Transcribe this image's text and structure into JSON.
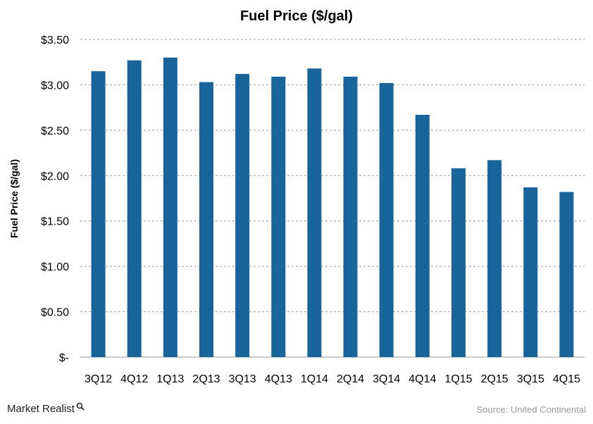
{
  "chart_data": {
    "type": "bar",
    "title": "Fuel Price ($/gal)",
    "xlabel": "",
    "ylabel": "Fuel Price ($/gal)",
    "categories": [
      "3Q12",
      "4Q12",
      "1Q13",
      "2Q13",
      "3Q13",
      "4Q13",
      "1Q14",
      "2Q14",
      "3Q14",
      "4Q14",
      "1Q15",
      "2Q15",
      "3Q15",
      "4Q15"
    ],
    "values": [
      3.15,
      3.27,
      3.3,
      3.03,
      3.12,
      3.09,
      3.18,
      3.09,
      3.02,
      2.67,
      2.08,
      2.17,
      1.87,
      1.82
    ],
    "ylim": [
      0,
      3.5
    ],
    "yticks": [
      0,
      0.5,
      1.0,
      1.5,
      2.0,
      2.5,
      3.0,
      3.5
    ],
    "ytick_labels": [
      "$-",
      "$0.50",
      "$1.00",
      "$1.50",
      "$2.00",
      "$2.50",
      "$3.00",
      "$3.50"
    ],
    "grid": true,
    "grid_style": "dashed",
    "bar_color": "#17659B",
    "grid_color": "#9a9a9a"
  },
  "branding": {
    "name": "Market Realist",
    "icon": "magnifier-icon"
  },
  "source": "Source: United Continental"
}
